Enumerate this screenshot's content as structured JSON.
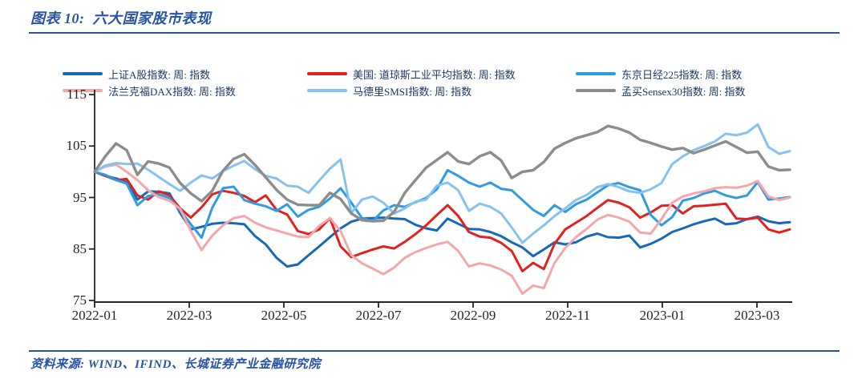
{
  "header": {
    "title_prefix": "图表 10:",
    "title": "六大国家股市表现"
  },
  "footer": {
    "source": "资料来源: WIND、IFIND、长城证券产业金融研究院"
  },
  "colors": {
    "accent_blue": "#2853A5",
    "legend_text": "#1F3864",
    "axis_text": "#262626"
  },
  "chart_data": {
    "type": "line",
    "title": "六大国家股市表现",
    "xlabel": "",
    "ylabel": "",
    "x_axis_note": "weekly index points, 2022-01 through 2023-04",
    "x_tick_labels": [
      "2022-01",
      "2022-03",
      "2022-05",
      "2022-07",
      "2022-09",
      "2022-11",
      "2023-01",
      "2023-03"
    ],
    "y_tick_labels": [
      "115",
      "105",
      "95",
      "85",
      "75"
    ],
    "y_tick_values": [
      115,
      105,
      95,
      85,
      75
    ],
    "ylim": [
      75,
      115
    ],
    "grid": false,
    "legend_position": "top",
    "series": [
      {
        "name": "上证A股指数: 周: 指数",
        "color": "#1769B8",
        "values": [
          100,
          99.2,
          98.7,
          98,
          94.6,
          96.2,
          96.1,
          95.8,
          92,
          88.8,
          89.3,
          89.9,
          90.1,
          90,
          89.8,
          87.5,
          85.9,
          83.3,
          81.6,
          82,
          83.8,
          85.5,
          87.3,
          89,
          90.3,
          90.9,
          91,
          91.1,
          90.9,
          90.8,
          89.7,
          89,
          88.6,
          90.9,
          89.9,
          88.9,
          88.8,
          88.3,
          87.5,
          86.3,
          85.3,
          83.6,
          84.9,
          86.3,
          85.9,
          86.3,
          87.4,
          88,
          87.3,
          87.2,
          87.6,
          85.3,
          86,
          87,
          88.3,
          89,
          89.8,
          90.4,
          90.9,
          89.8,
          90,
          90.8,
          91.3,
          90.4,
          90,
          90.2
        ]
      },
      {
        "name": "美国: 道琼斯工业平均指数: 周: 指数",
        "color": "#E02220",
        "values": [
          100,
          99.2,
          98.4,
          98.6,
          95.4,
          94.6,
          96.2,
          95.4,
          92.9,
          91.1,
          93.1,
          95.6,
          96.3,
          95.9,
          95.3,
          94.1,
          95.4,
          92.6,
          91.7,
          88.5,
          87.9,
          88.8,
          91,
          85.5,
          83.4,
          84.2,
          84.9,
          85.5,
          85.1,
          86.4,
          87.9,
          89.6,
          91.6,
          93.5,
          91.4,
          88.3,
          87.4,
          87.2,
          86.2,
          84.6,
          80.7,
          82.3,
          81.1,
          86,
          88.8,
          90.1,
          91.4,
          93,
          94.5,
          94,
          93.1,
          91.1,
          92.1,
          93.4,
          93.5,
          91.9,
          93.3,
          93.4,
          93.6,
          93.8,
          90.9,
          90.8,
          91.1,
          88.8,
          88.2,
          88.8
        ]
      },
      {
        "name": "东京日经225指数: 周: 指数",
        "color": "#2F9BE3",
        "values": [
          100,
          99.4,
          98.4,
          97.7,
          93.5,
          95.3,
          95.6,
          94.9,
          92.5,
          89.8,
          87.2,
          93,
          96.8,
          97.1,
          94.5,
          93.8,
          93.3,
          92.4,
          93.7,
          91.3,
          92.6,
          93.2,
          94.8,
          96.8,
          94,
          91,
          90.4,
          92.5,
          93.5,
          93.2,
          94.1,
          94.9,
          96.6,
          100.3,
          99.2,
          97.9,
          97.1,
          97.9,
          96.7,
          96.4,
          94.5,
          92.6,
          91.4,
          93.5,
          92.2,
          93.7,
          94.6,
          96,
          97.4,
          97.8,
          97,
          96.4,
          91.6,
          89.6,
          91.2,
          94.4,
          94.9,
          95.8,
          96.3,
          95.4,
          94.9,
          95.4,
          98,
          94.6,
          94.8,
          95.1
        ]
      },
      {
        "name": "法兰克福DAX指数: 周: 指数",
        "color": "#F5A6AB",
        "values": [
          100,
          101,
          101.4,
          100,
          98.4,
          96.4,
          95.1,
          94.4,
          92.8,
          88.5,
          84.8,
          87.6,
          89.6,
          91,
          91.4,
          90.1,
          89.2,
          88.6,
          88,
          87.4,
          87.3,
          89.5,
          91,
          88.5,
          83.8,
          82.2,
          81.2,
          80.1,
          81.4,
          83.3,
          84.4,
          85.2,
          85.9,
          86.4,
          84.6,
          81.6,
          82.2,
          81.8,
          81,
          79.8,
          76.3,
          77.9,
          77.4,
          82.3,
          85.2,
          87.3,
          88.9,
          90.7,
          91.6,
          91.1,
          90.3,
          88.2,
          88,
          90.8,
          94,
          95.2,
          95.8,
          96.2,
          96.8,
          97,
          96.9,
          97.3,
          98.2,
          95.2,
          94.5,
          95
        ]
      },
      {
        "name": "马德里SMSI指数: 周: 指数",
        "color": "#85C2EE",
        "values": [
          100,
          101.2,
          101.7,
          101.5,
          101.6,
          100.4,
          99,
          97.6,
          96.3,
          97.9,
          99.3,
          98.7,
          100.1,
          101.2,
          102.1,
          100.5,
          99.2,
          98.7,
          97.3,
          97.1,
          95.9,
          98.3,
          100.6,
          102.4,
          92,
          94.6,
          95.2,
          94,
          91.9,
          92.9,
          94.2,
          94.6,
          97.3,
          97.9,
          96.4,
          92.4,
          93.8,
          93.2,
          91.9,
          89.2,
          86.2,
          88,
          89.6,
          91.4,
          92.9,
          94.5,
          95.5,
          97,
          97.6,
          97,
          96.2,
          95.9,
          96.6,
          97.8,
          101.5,
          103,
          104.2,
          105,
          105.9,
          107.4,
          107.1,
          107.6,
          109.2,
          104.8,
          103.5,
          104
        ]
      },
      {
        "name": "孟买Sensex30指数: 周: 指数",
        "color": "#8C8C8C",
        "values": [
          100,
          103,
          105.5,
          104.2,
          99.4,
          102,
          101.6,
          100.8,
          97.8,
          95.8,
          94.3,
          96.3,
          100.2,
          102.5,
          103.4,
          101.3,
          98.9,
          96.5,
          94.6,
          93.6,
          93.5,
          93.5,
          95.9,
          94.7,
          91.9,
          90.6,
          90.4,
          90.5,
          92.2,
          95.9,
          98.4,
          100.8,
          102.3,
          103.8,
          102,
          101.5,
          103,
          103.8,
          102.2,
          98.8,
          100,
          100.3,
          101.9,
          104.5,
          105.6,
          106.5,
          107.1,
          107.7,
          108.9,
          108.4,
          107.6,
          106.2,
          105.6,
          104.9,
          104.3,
          104.6,
          103.6,
          104.3,
          105.1,
          105.9,
          104.8,
          103.7,
          103.9,
          101,
          100.3,
          100.4
        ]
      }
    ]
  }
}
